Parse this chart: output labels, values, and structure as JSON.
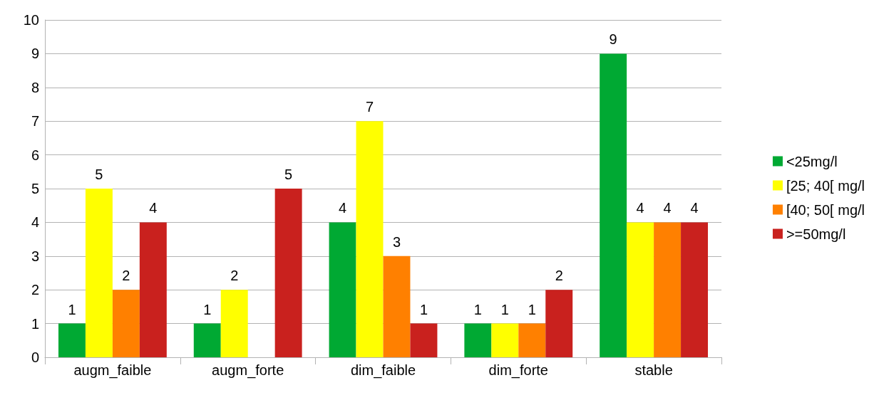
{
  "chart_data": {
    "type": "bar",
    "categories": [
      "augm_faible",
      "augm_forte",
      "dim_faible",
      "dim_forte",
      "stable"
    ],
    "series": [
      {
        "name": "<25mg/l",
        "color": "#00a933",
        "values": [
          1,
          1,
          4,
          1,
          9
        ]
      },
      {
        "name": "[25; 40[ mg/l",
        "color": "#ffff00",
        "values": [
          5,
          2,
          7,
          1,
          4
        ]
      },
      {
        "name": "[40; 50[ mg/l",
        "color": "#ff8000",
        "values": [
          2,
          null,
          3,
          1,
          4
        ]
      },
      {
        "name": ">=50mg/l",
        "color": "#c9211e",
        "values": [
          4,
          5,
          1,
          2,
          4
        ]
      }
    ],
    "ylim": [
      0,
      10
    ],
    "yticks": [
      0,
      1,
      2,
      3,
      4,
      5,
      6,
      7,
      8,
      9,
      10
    ],
    "grid": "y",
    "legend": "right",
    "data_labels": true
  }
}
